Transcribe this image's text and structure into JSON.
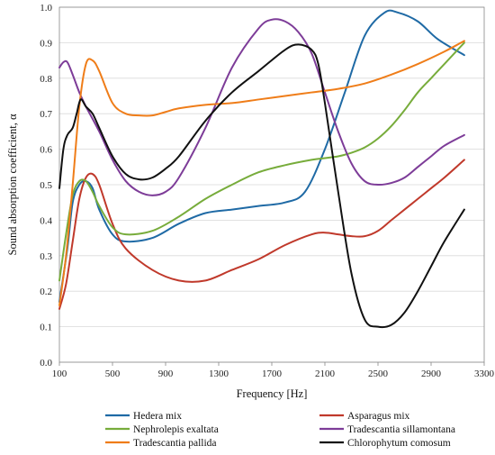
{
  "chart_data": {
    "type": "line",
    "xlabel": "Frequency [Hz]",
    "ylabel": "Sound absorption coefficient, α",
    "xlim": [
      100,
      3300
    ],
    "ylim": [
      0.0,
      1.0
    ],
    "xticks": [
      "100",
      "500",
      "900",
      "1300",
      "1700",
      "2100",
      "2500",
      "2900",
      "3300"
    ],
    "yticks": [
      "0.0",
      "0.1",
      "0.2",
      "0.3",
      "0.4",
      "0.5",
      "0.6",
      "0.7",
      "0.8",
      "0.9",
      "1.0"
    ],
    "grid": "horizontal",
    "legend_position": "bottom",
    "series": [
      {
        "name": "Hedera mix",
        "color": "#1f6aa5",
        "x": [
          100,
          160,
          200,
          250,
          300,
          350,
          400,
          500,
          600,
          800,
          1000,
          1200,
          1400,
          1600,
          1800,
          1950,
          2100,
          2250,
          2400,
          2550,
          2650,
          2800,
          2950,
          3150
        ],
        "y": [
          0.17,
          0.32,
          0.45,
          0.5,
          0.51,
          0.49,
          0.43,
          0.36,
          0.34,
          0.35,
          0.39,
          0.42,
          0.43,
          0.44,
          0.45,
          0.48,
          0.6,
          0.76,
          0.92,
          0.985,
          0.985,
          0.96,
          0.91,
          0.865
        ]
      },
      {
        "name": "Asparagus mix",
        "color": "#c0392b",
        "x": [
          100,
          150,
          200,
          250,
          300,
          350,
          400,
          500,
          600,
          800,
          1000,
          1200,
          1400,
          1600,
          1800,
          2000,
          2100,
          2200,
          2300,
          2400,
          2500,
          2600,
          2700,
          2800,
          2900,
          3000,
          3150
        ],
        "y": [
          0.15,
          0.22,
          0.34,
          0.46,
          0.52,
          0.53,
          0.5,
          0.39,
          0.32,
          0.26,
          0.23,
          0.23,
          0.26,
          0.29,
          0.33,
          0.36,
          0.365,
          0.36,
          0.355,
          0.355,
          0.37,
          0.4,
          0.43,
          0.46,
          0.49,
          0.52,
          0.57
        ]
      },
      {
        "name": "Nephrolepis exaltata",
        "color": "#77ac3b",
        "x": [
          100,
          150,
          200,
          250,
          300,
          350,
          400,
          500,
          600,
          800,
          1000,
          1200,
          1400,
          1600,
          1800,
          2000,
          2100,
          2200,
          2300,
          2400,
          2500,
          2600,
          2700,
          2800,
          2900,
          3000,
          3150
        ],
        "y": [
          0.23,
          0.36,
          0.47,
          0.51,
          0.51,
          0.48,
          0.44,
          0.38,
          0.36,
          0.37,
          0.41,
          0.46,
          0.5,
          0.535,
          0.555,
          0.57,
          0.575,
          0.58,
          0.59,
          0.605,
          0.63,
          0.665,
          0.71,
          0.76,
          0.8,
          0.84,
          0.9
        ]
      },
      {
        "name": "Tradescantia sillamontana",
        "color": "#7d3c98",
        "x": [
          100,
          130,
          160,
          200,
          250,
          300,
          400,
          500,
          600,
          700,
          800,
          900,
          1000,
          1200,
          1400,
          1600,
          1700,
          1800,
          1900,
          2000,
          2100,
          2200,
          2300,
          2400,
          2500,
          2600,
          2700,
          2800,
          2900,
          3000,
          3150
        ],
        "y": [
          0.83,
          0.845,
          0.845,
          0.81,
          0.76,
          0.72,
          0.65,
          0.57,
          0.51,
          0.48,
          0.47,
          0.48,
          0.52,
          0.66,
          0.83,
          0.94,
          0.965,
          0.96,
          0.93,
          0.87,
          0.76,
          0.65,
          0.56,
          0.51,
          0.5,
          0.505,
          0.52,
          0.55,
          0.58,
          0.61,
          0.64
        ]
      },
      {
        "name": "Tradescantia pallida",
        "color": "#ef7d19",
        "x": [
          100,
          150,
          200,
          250,
          300,
          350,
          400,
          500,
          600,
          700,
          800,
          900,
          1000,
          1200,
          1400,
          1600,
          1800,
          2000,
          2200,
          2400,
          2600,
          2800,
          3000,
          3150
        ],
        "y": [
          0.16,
          0.3,
          0.5,
          0.72,
          0.84,
          0.85,
          0.82,
          0.73,
          0.7,
          0.695,
          0.695,
          0.705,
          0.715,
          0.725,
          0.73,
          0.74,
          0.75,
          0.76,
          0.77,
          0.785,
          0.81,
          0.84,
          0.875,
          0.905
        ]
      },
      {
        "name": "Chlorophytum comosum",
        "color": "#111111",
        "x": [
          100,
          130,
          160,
          200,
          230,
          260,
          300,
          350,
          400,
          500,
          600,
          700,
          800,
          900,
          1000,
          1200,
          1400,
          1600,
          1800,
          1900,
          2000,
          2050,
          2100,
          2200,
          2300,
          2400,
          2500,
          2600,
          2700,
          2800,
          2900,
          3000,
          3150
        ],
        "y": [
          0.49,
          0.6,
          0.64,
          0.66,
          0.7,
          0.74,
          0.72,
          0.7,
          0.66,
          0.58,
          0.53,
          0.515,
          0.52,
          0.545,
          0.58,
          0.68,
          0.76,
          0.82,
          0.88,
          0.895,
          0.88,
          0.84,
          0.73,
          0.48,
          0.25,
          0.12,
          0.1,
          0.105,
          0.14,
          0.2,
          0.27,
          0.34,
          0.43
        ]
      }
    ]
  }
}
